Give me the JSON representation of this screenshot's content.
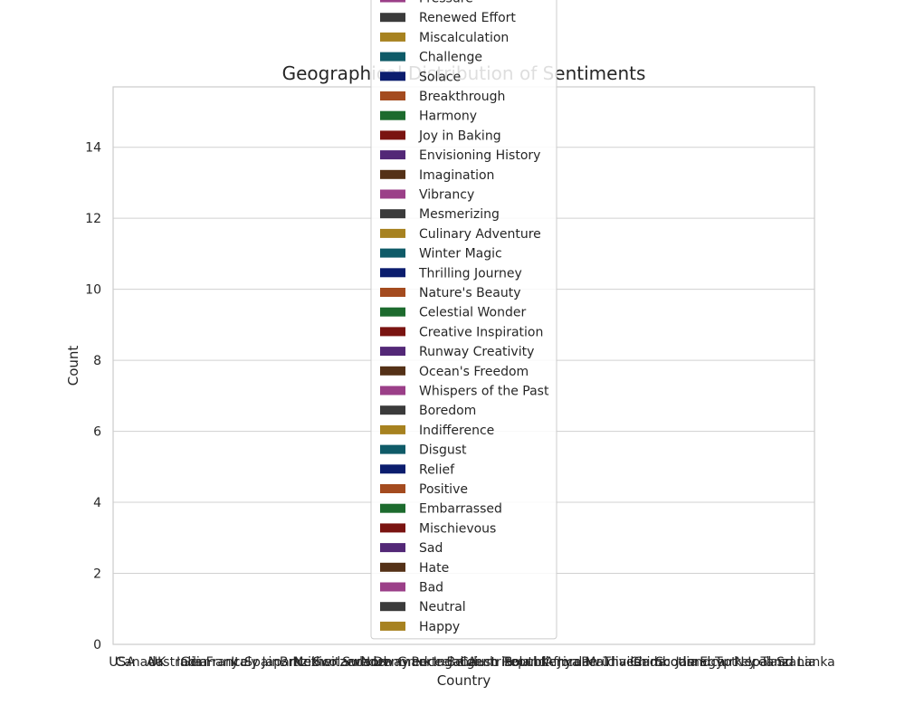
{
  "chart_data": {
    "type": "bar",
    "title": "Geographical Distribution of Sentiments",
    "xlabel": "Country",
    "ylabel": "Count",
    "ylim": [
      0,
      15.7
    ],
    "yticks": [
      0,
      2,
      4,
      6,
      8,
      10,
      12,
      14
    ],
    "grid": true,
    "legend_position": "center (overlapping plot)",
    "x_tick_labels": [
      "USA",
      "Canada",
      "UK",
      "Australia",
      "India",
      "Germany",
      "France",
      "Italy",
      "Spain",
      "Japan",
      "Brazil",
      "Mexico",
      "Netherlands",
      "Switzerland",
      "Sweden",
      "Norway",
      "Denmark",
      "Greece",
      "Portugal",
      "Ireland",
      "Belgium",
      "Austria",
      "Czech Republic",
      "Poland",
      "South Africa",
      "Kenya",
      "Jordan",
      "Peru",
      "Maldives",
      "Thailand",
      "China",
      "Cambodia",
      "Scotland",
      "Jamaica",
      "Egypt",
      "Turkey",
      "Nepal",
      "Iceland",
      "Tanzania",
      "Sri Lanka"
    ],
    "legend_entries": [
      {
        "name": "Pressure",
        "color": "#9b3f88"
      },
      {
        "name": "Renewed Effort",
        "color": "#3b3b3b"
      },
      {
        "name": "Miscalculation",
        "color": "#a78220"
      },
      {
        "name": "Challenge",
        "color": "#0f5b68"
      },
      {
        "name": "Solace",
        "color": "#0b1d6e"
      },
      {
        "name": "Breakthrough",
        "color": "#a44b1f"
      },
      {
        "name": "Harmony",
        "color": "#1d6b2e"
      },
      {
        "name": "Joy in Baking",
        "color": "#7a1411"
      },
      {
        "name": "Envisioning History",
        "color": "#532877"
      },
      {
        "name": "Imagination",
        "color": "#543117"
      },
      {
        "name": "Vibrancy",
        "color": "#9b3f88"
      },
      {
        "name": "Mesmerizing",
        "color": "#3b3b3b"
      },
      {
        "name": "Culinary Adventure",
        "color": "#a78220"
      },
      {
        "name": "Winter Magic",
        "color": "#0f5b68"
      },
      {
        "name": "Thrilling Journey",
        "color": "#0b1d6e"
      },
      {
        "name": "Nature's Beauty",
        "color": "#a44b1f"
      },
      {
        "name": "Celestial Wonder",
        "color": "#1d6b2e"
      },
      {
        "name": "Creative Inspiration",
        "color": "#7a1411"
      },
      {
        "name": "Runway Creativity",
        "color": "#532877"
      },
      {
        "name": "Ocean's Freedom",
        "color": "#543117"
      },
      {
        "name": "Whispers of the Past",
        "color": "#9b3f88"
      },
      {
        "name": "Boredom",
        "color": "#3b3b3b"
      },
      {
        "name": "Indifference",
        "color": "#a78220"
      },
      {
        "name": "Disgust",
        "color": "#0f5b68"
      },
      {
        "name": "Relief",
        "color": "#0b1d6e"
      },
      {
        "name": "Positive",
        "color": "#a44b1f"
      },
      {
        "name": "Embarrassed",
        "color": "#1d6b2e"
      },
      {
        "name": "Mischievous",
        "color": "#7a1411"
      },
      {
        "name": "Sad",
        "color": "#532877"
      },
      {
        "name": "Hate",
        "color": "#543117"
      },
      {
        "name": "Bad",
        "color": "#9b3f88"
      },
      {
        "name": "Neutral",
        "color": "#3b3b3b"
      },
      {
        "name": "Happy",
        "color": "#a78220"
      }
    ],
    "series": [],
    "colors": {
      "grid": "#d0d0d0",
      "axis": "#cccccc",
      "legend_border": "#cccccc"
    }
  }
}
